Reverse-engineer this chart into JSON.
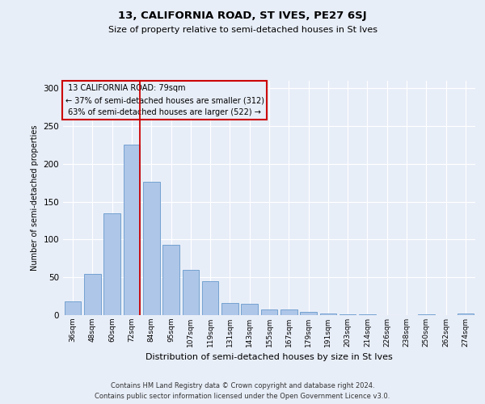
{
  "title": "13, CALIFORNIA ROAD, ST IVES, PE27 6SJ",
  "subtitle": "Size of property relative to semi-detached houses in St Ives",
  "xlabel": "Distribution of semi-detached houses by size in St Ives",
  "ylabel": "Number of semi-detached properties",
  "categories": [
    "36sqm",
    "48sqm",
    "60sqm",
    "72sqm",
    "84sqm",
    "95sqm",
    "107sqm",
    "119sqm",
    "131sqm",
    "143sqm",
    "155sqm",
    "167sqm",
    "179sqm",
    "191sqm",
    "203sqm",
    "214sqm",
    "226sqm",
    "238sqm",
    "250sqm",
    "262sqm",
    "274sqm"
  ],
  "values": [
    18,
    54,
    135,
    226,
    176,
    93,
    60,
    45,
    16,
    15,
    8,
    8,
    4,
    2,
    1,
    1,
    0,
    0,
    1,
    0,
    2
  ],
  "bar_color": "#aec6e8",
  "bar_edge_color": "#6699cc",
  "property_sqm": 79,
  "pct_smaller": 37,
  "count_smaller": 312,
  "pct_larger": 63,
  "count_larger": 522,
  "annotation_label": "13 CALIFORNIA ROAD: 79sqm",
  "annotation_line_color": "#cc0000",
  "annotation_box_edge_color": "#cc0000",
  "background_color": "#e8eef8",
  "grid_color": "#ffffff",
  "ylim": [
    0,
    310
  ],
  "yticks": [
    0,
    50,
    100,
    150,
    200,
    250,
    300
  ],
  "footer_line1": "Contains HM Land Registry data © Crown copyright and database right 2024.",
  "footer_line2": "Contains public sector information licensed under the Open Government Licence v3.0."
}
